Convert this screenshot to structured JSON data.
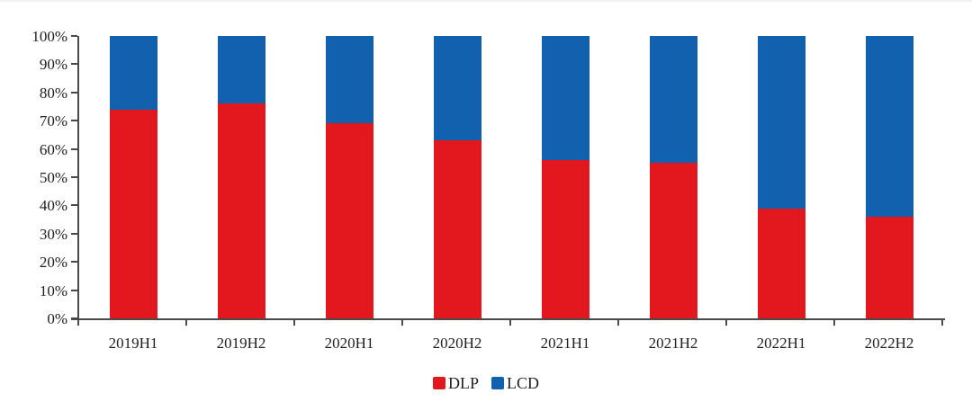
{
  "chart_data": {
    "type": "bar",
    "variant": "stacked-100-percent-column",
    "title": "",
    "xlabel": "",
    "ylabel": "",
    "categories": [
      "2019H1",
      "2019H2",
      "2020H1",
      "2020H2",
      "2021H1",
      "2021H2",
      "2022H1",
      "2022H2"
    ],
    "series": [
      {
        "name": "DLP",
        "color": "#e3171e",
        "values": [
          74,
          76,
          69,
          63,
          56,
          55,
          39,
          36
        ]
      },
      {
        "name": "LCD",
        "color": "#1161ae",
        "values": [
          26,
          24,
          31,
          37,
          44,
          45,
          61,
          64
        ]
      }
    ],
    "ylim": [
      0,
      100
    ],
    "y_tick_step": 10,
    "y_tick_labels": [
      "100%",
      "90%",
      "80%",
      "70%",
      "60%",
      "50%",
      "40%",
      "30%",
      "20%",
      "10%",
      "0%"
    ],
    "grid": false,
    "legend_position": "bottom-center",
    "axis_color": "#4a4a4a",
    "text_color": "#1f1f1f",
    "background_color": "#ffffff"
  }
}
